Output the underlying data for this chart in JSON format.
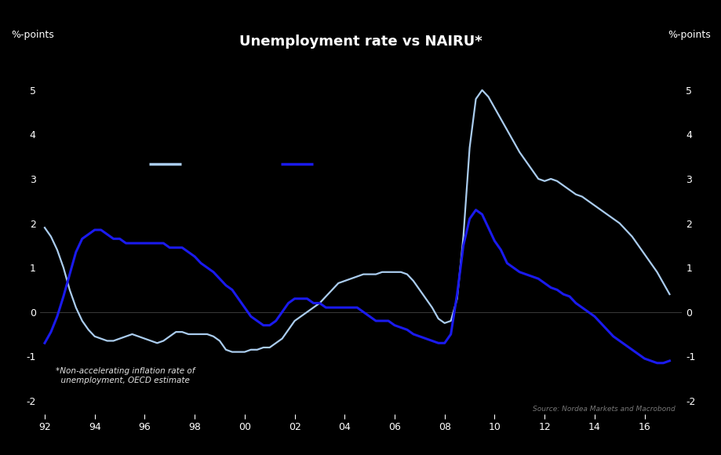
{
  "title": "Unemployment rate vs NAIRU*",
  "ylabel_left": "%-points",
  "ylabel_right": "%-points",
  "footnote": "*Non-accelerating inflation rate of\n  unemployment, OECD estimate",
  "source": "Source: Nordea Markets and Macrobond",
  "background_color": "#000000",
  "text_color": "#ffffff",
  "line1_color": "#aaccee",
  "line2_color": "#1a1aee",
  "ylim": [
    -2.3,
    5.8
  ],
  "yticks": [
    -2,
    -1,
    0,
    1,
    2,
    3,
    4,
    5
  ],
  "xmin": 1991.8,
  "xmax": 2017.5,
  "xtick_labels": [
    "92",
    "94",
    "96",
    "98",
    "00",
    "02",
    "04",
    "06",
    "08",
    "10",
    "12",
    "14",
    "16"
  ],
  "xtick_positions": [
    1992,
    1994,
    1996,
    1998,
    2000,
    2002,
    2004,
    2006,
    2008,
    2010,
    2012,
    2014,
    2016
  ],
  "europe_x": [
    1992.0,
    1992.25,
    1992.5,
    1992.75,
    1993.0,
    1993.25,
    1993.5,
    1993.75,
    1994.0,
    1994.25,
    1994.5,
    1994.75,
    1995.0,
    1995.25,
    1995.5,
    1995.75,
    1996.0,
    1996.25,
    1996.5,
    1996.75,
    1997.0,
    1997.25,
    1997.5,
    1997.75,
    1998.0,
    1998.25,
    1998.5,
    1998.75,
    1999.0,
    1999.25,
    1999.5,
    1999.75,
    2000.0,
    2000.25,
    2000.5,
    2000.75,
    2001.0,
    2001.25,
    2001.5,
    2001.75,
    2002.0,
    2002.25,
    2002.5,
    2002.75,
    2003.0,
    2003.25,
    2003.5,
    2003.75,
    2004.0,
    2004.25,
    2004.5,
    2004.75,
    2005.0,
    2005.25,
    2005.5,
    2005.75,
    2006.0,
    2006.25,
    2006.5,
    2006.75,
    2007.0,
    2007.25,
    2007.5,
    2007.75,
    2008.0,
    2008.25,
    2008.5,
    2008.75,
    2009.0,
    2009.25,
    2009.5,
    2009.75,
    2010.0,
    2010.25,
    2010.5,
    2010.75,
    2011.0,
    2011.25,
    2011.5,
    2011.75,
    2012.0,
    2012.25,
    2012.5,
    2012.75,
    2013.0,
    2013.25,
    2013.5,
    2013.75,
    2014.0,
    2014.25,
    2014.5,
    2014.75,
    2015.0,
    2015.25,
    2015.5,
    2015.75,
    2016.0,
    2016.25,
    2016.5,
    2016.75,
    2017.0
  ],
  "europe_y": [
    1.9,
    1.7,
    1.4,
    1.0,
    0.5,
    0.1,
    -0.2,
    -0.4,
    -0.55,
    -0.6,
    -0.65,
    -0.65,
    -0.6,
    -0.55,
    -0.5,
    -0.55,
    -0.6,
    -0.65,
    -0.7,
    -0.65,
    -0.55,
    -0.45,
    -0.45,
    -0.5,
    -0.5,
    -0.5,
    -0.5,
    -0.55,
    -0.65,
    -0.85,
    -0.9,
    -0.9,
    -0.9,
    -0.85,
    -0.85,
    -0.8,
    -0.8,
    -0.7,
    -0.6,
    -0.4,
    -0.2,
    -0.1,
    0.0,
    0.1,
    0.2,
    0.35,
    0.5,
    0.65,
    0.7,
    0.75,
    0.8,
    0.85,
    0.85,
    0.85,
    0.9,
    0.9,
    0.9,
    0.9,
    0.85,
    0.7,
    0.5,
    0.3,
    0.1,
    -0.15,
    -0.25,
    -0.2,
    0.3,
    1.7,
    3.7,
    4.8,
    5.0,
    4.85,
    4.6,
    4.35,
    4.1,
    3.85,
    3.6,
    3.4,
    3.2,
    3.0,
    2.95,
    3.0,
    2.95,
    2.85,
    2.75,
    2.65,
    2.6,
    2.5,
    2.4,
    2.3,
    2.2,
    2.1,
    2.0,
    1.85,
    1.7,
    1.5,
    1.3,
    1.1,
    0.9,
    0.65,
    0.4
  ],
  "usa_x": [
    1992.0,
    1992.25,
    1992.5,
    1992.75,
    1993.0,
    1993.25,
    1993.5,
    1993.75,
    1994.0,
    1994.25,
    1994.5,
    1994.75,
    1995.0,
    1995.25,
    1995.5,
    1995.75,
    1996.0,
    1996.25,
    1996.5,
    1996.75,
    1997.0,
    1997.25,
    1997.5,
    1997.75,
    1998.0,
    1998.25,
    1998.5,
    1998.75,
    1999.0,
    1999.25,
    1999.5,
    1999.75,
    2000.0,
    2000.25,
    2000.5,
    2000.75,
    2001.0,
    2001.25,
    2001.5,
    2001.75,
    2002.0,
    2002.25,
    2002.5,
    2002.75,
    2003.0,
    2003.25,
    2003.5,
    2003.75,
    2004.0,
    2004.25,
    2004.5,
    2004.75,
    2005.0,
    2005.25,
    2005.5,
    2005.75,
    2006.0,
    2006.25,
    2006.5,
    2006.75,
    2007.0,
    2007.25,
    2007.5,
    2007.75,
    2008.0,
    2008.25,
    2008.5,
    2008.75,
    2009.0,
    2009.25,
    2009.5,
    2009.75,
    2010.0,
    2010.25,
    2010.5,
    2010.75,
    2011.0,
    2011.25,
    2011.5,
    2011.75,
    2012.0,
    2012.25,
    2012.5,
    2012.75,
    2013.0,
    2013.25,
    2013.5,
    2013.75,
    2014.0,
    2014.25,
    2014.5,
    2014.75,
    2015.0,
    2015.25,
    2015.5,
    2015.75,
    2016.0,
    2016.25,
    2016.5,
    2016.75,
    2017.0
  ],
  "usa_y": [
    -0.7,
    -0.45,
    -0.1,
    0.35,
    0.85,
    1.35,
    1.65,
    1.75,
    1.85,
    1.85,
    1.75,
    1.65,
    1.65,
    1.55,
    1.55,
    1.55,
    1.55,
    1.55,
    1.55,
    1.55,
    1.45,
    1.45,
    1.45,
    1.35,
    1.25,
    1.1,
    1.0,
    0.9,
    0.75,
    0.6,
    0.5,
    0.3,
    0.1,
    -0.1,
    -0.2,
    -0.3,
    -0.3,
    -0.2,
    0.0,
    0.2,
    0.3,
    0.3,
    0.3,
    0.2,
    0.2,
    0.1,
    0.1,
    0.1,
    0.1,
    0.1,
    0.1,
    0.0,
    -0.1,
    -0.2,
    -0.2,
    -0.2,
    -0.3,
    -0.35,
    -0.4,
    -0.5,
    -0.55,
    -0.6,
    -0.65,
    -0.7,
    -0.7,
    -0.5,
    0.4,
    1.5,
    2.1,
    2.3,
    2.2,
    1.9,
    1.6,
    1.4,
    1.1,
    1.0,
    0.9,
    0.85,
    0.8,
    0.75,
    0.65,
    0.55,
    0.5,
    0.4,
    0.35,
    0.2,
    0.1,
    0.0,
    -0.1,
    -0.25,
    -0.4,
    -0.55,
    -0.65,
    -0.75,
    -0.85,
    -0.95,
    -1.05,
    -1.1,
    -1.15,
    -1.15,
    -1.1
  ]
}
